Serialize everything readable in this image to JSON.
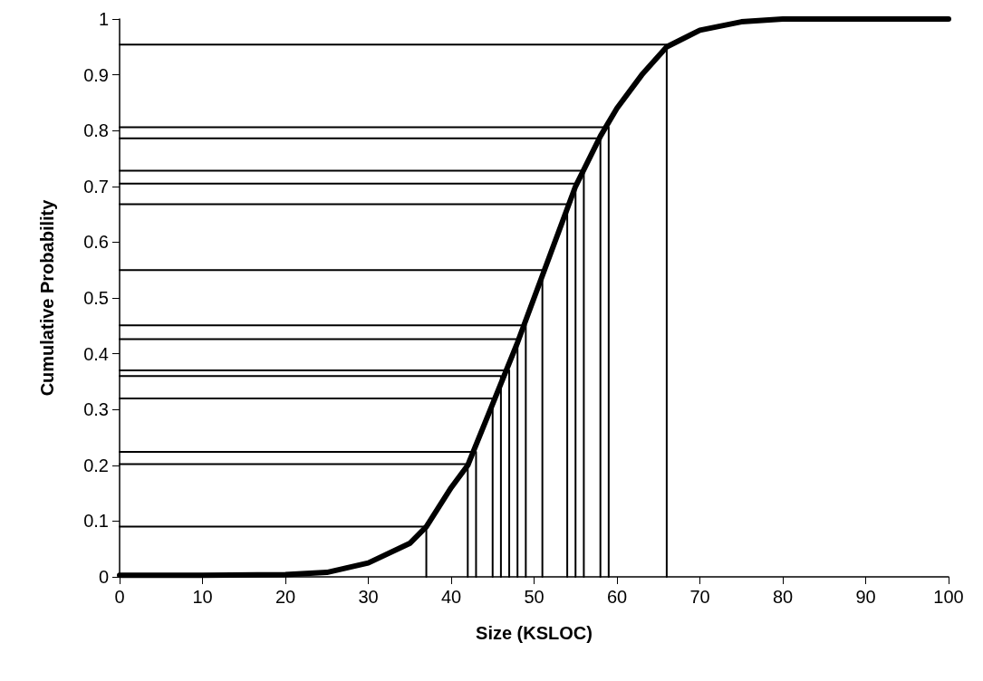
{
  "chart_data": {
    "type": "line",
    "xlabel": "Size (KSLOC)",
    "ylabel": "Cumulative Probability",
    "xlim": [
      0,
      100
    ],
    "xticks": [
      0,
      10,
      20,
      30,
      40,
      50,
      60,
      70,
      80,
      90,
      100
    ],
    "ylim": [
      0,
      1
    ],
    "yticks": [
      0,
      0.1,
      0.2,
      0.3,
      0.4,
      0.5,
      0.6,
      0.7,
      0.8,
      0.9,
      1
    ],
    "grid": false,
    "marker": "none",
    "line_style": "solid",
    "series": [
      {
        "color": "#000000",
        "x": [
          0,
          10,
          20,
          25,
          30,
          35,
          37,
          40,
          42,
          45,
          48,
          50,
          52,
          55,
          58,
          60,
          63,
          66,
          70,
          75,
          80,
          90,
          100
        ],
        "values": [
          0.003,
          0.003,
          0.004,
          0.008,
          0.025,
          0.06,
          0.09,
          0.16,
          0.2,
          0.31,
          0.42,
          0.5,
          0.58,
          0.7,
          0.79,
          0.84,
          0.9,
          0.95,
          0.98,
          0.995,
          1,
          1,
          1
        ]
      },
      {
        "color": "#000000",
        "x": [
          0,
          37,
          37
        ],
        "values": [
          0.09,
          0.09,
          0
        ]
      },
      {
        "color": "#000000",
        "x": [
          0,
          42,
          42
        ],
        "values": [
          0.202,
          0.202,
          0
        ]
      },
      {
        "color": "#000000",
        "x": [
          0,
          43,
          43
        ],
        "values": [
          0.224,
          0.224,
          0
        ]
      },
      {
        "color": "#000000",
        "x": [
          0,
          45,
          45
        ],
        "values": [
          0.32,
          0.32,
          0
        ]
      },
      {
        "color": "#000000",
        "x": [
          0,
          46,
          46
        ],
        "values": [
          0.36,
          0.36,
          0
        ]
      },
      {
        "color": "#000000",
        "x": [
          0,
          47,
          47
        ],
        "values": [
          0.37,
          0.37,
          0
        ]
      },
      {
        "color": "#000000",
        "x": [
          0,
          48,
          48
        ],
        "values": [
          0.426,
          0.426,
          0
        ]
      },
      {
        "color": "#000000",
        "x": [
          0,
          49,
          49
        ],
        "values": [
          0.451,
          0.451,
          0
        ]
      },
      {
        "color": "#000000",
        "x": [
          0,
          51,
          51
        ],
        "values": [
          0.55,
          0.55,
          0
        ]
      },
      {
        "color": "#000000",
        "x": [
          0,
          54,
          54
        ],
        "values": [
          0.668,
          0.668,
          0
        ]
      },
      {
        "color": "#000000",
        "x": [
          0,
          55,
          55
        ],
        "values": [
          0.705,
          0.705,
          0
        ]
      },
      {
        "color": "#000000",
        "x": [
          0,
          56,
          56
        ],
        "values": [
          0.728,
          0.728,
          0
        ]
      },
      {
        "color": "#000000",
        "x": [
          0,
          58,
          58
        ],
        "values": [
          0.786,
          0.786,
          0
        ]
      },
      {
        "color": "#000000",
        "x": [
          0,
          59,
          59
        ],
        "values": [
          0.806,
          0.806,
          0
        ]
      },
      {
        "color": "#000000",
        "x": [
          0,
          66,
          66
        ],
        "values": [
          0.954,
          0.954,
          0
        ]
      }
    ]
  }
}
